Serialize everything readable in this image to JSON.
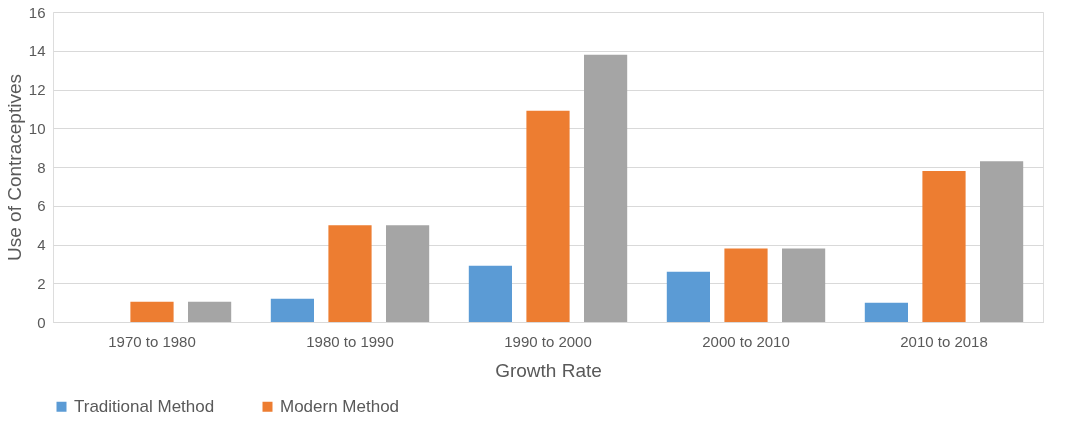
{
  "chart_data": {
    "type": "bar",
    "xlabel": "Growth Rate",
    "ylabel": "Use of Contraceptives",
    "categories": [
      "1970 to 1980",
      "1980 to 1990",
      "1990 to 2000",
      "2000 to 2010",
      "2010 to 2018"
    ],
    "series": [
      {
        "name": "Traditional  Method",
        "color": "#5b9bd5",
        "values": [
          0,
          1.2,
          2.9,
          2.6,
          1.0
        ]
      },
      {
        "name": "Modern Method",
        "color": "#ed7d31",
        "values": [
          1.05,
          5.0,
          10.9,
          3.8,
          7.8
        ]
      },
      {
        "color": "#a5a5a5",
        "values": [
          1.05,
          5.0,
          13.8,
          3.8,
          8.3
        ]
      }
    ],
    "ylim": [
      0,
      16
    ],
    "yticks": [
      0,
      2,
      4,
      6,
      8,
      10,
      12,
      14,
      16
    ],
    "grid": "y",
    "legend": "bottom"
  }
}
